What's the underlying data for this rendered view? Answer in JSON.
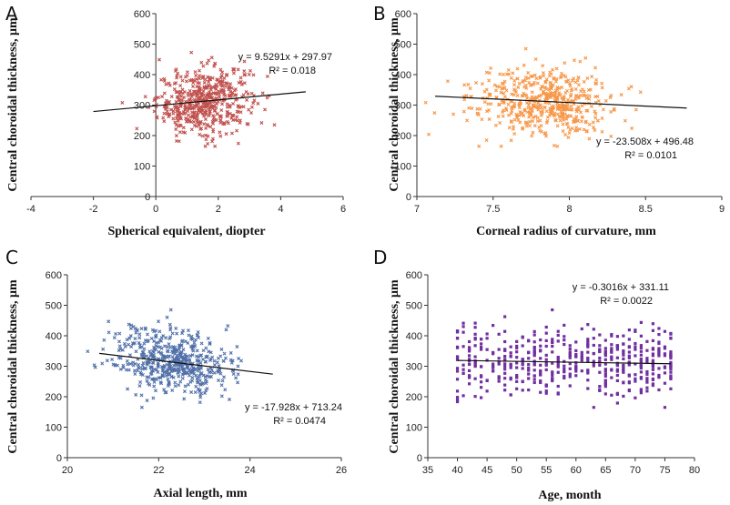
{
  "chart_data": [
    {
      "type": "scatter",
      "panel": "A",
      "xlabel": "Spherical equivalent, diopter",
      "ylabel": "Central  choroidal thickness, μm",
      "xlim": [
        -4,
        6
      ],
      "ylim": [
        0,
        600
      ],
      "xticks": [
        -4,
        -2,
        0,
        2,
        4,
        6
      ],
      "yticks": [
        0,
        100,
        200,
        300,
        400,
        500,
        600
      ],
      "y_axis_at_x": 0,
      "color": "#c0504d",
      "marker": "x",
      "n_points": 520,
      "x_distribution": {
        "mean": 1.55,
        "sd": 0.75
      },
      "y_distribution": {
        "mean": 310,
        "sd": 55
      },
      "trendline": {
        "slope": 9.5291,
        "intercept": 297.97,
        "x_range": [
          -2,
          4.8
        ]
      },
      "equation": "y = 9.5291x + 297.97",
      "r2": "R² = 0.018"
    },
    {
      "type": "scatter",
      "panel": "B",
      "xlabel": "Corneal radius of curvature, mm",
      "ylabel": "Central  choroidal thickness, μm",
      "xlim": [
        7,
        9
      ],
      "ylim": [
        0,
        600
      ],
      "xticks": [
        7,
        7.5,
        8,
        8.5,
        9
      ],
      "yticks": [
        0,
        100,
        200,
        300,
        400,
        500,
        600
      ],
      "y_axis_at_x": 7,
      "color": "#f79646",
      "marker": "x",
      "n_points": 520,
      "x_distribution": {
        "mean": 7.82,
        "sd": 0.23
      },
      "y_distribution": {
        "mean": 310,
        "sd": 55
      },
      "trendline": {
        "slope": -23.508,
        "intercept": 496.48,
        "x_range": [
          7.12,
          8.77
        ]
      },
      "equation": "y = -23.508x + 496.48",
      "r2": "R² = 0.0101"
    },
    {
      "type": "scatter",
      "panel": "C",
      "xlabel": "Axial length, mm",
      "ylabel": "Central  choroidal thickness, μm",
      "xlim": [
        20,
        26
      ],
      "ylim": [
        0,
        600
      ],
      "xticks": [
        20,
        22,
        24,
        26
      ],
      "yticks": [
        0,
        100,
        200,
        300,
        400,
        500,
        600
      ],
      "y_axis_at_x": 20,
      "color": "#4f6fa8",
      "marker": "x",
      "n_points": 520,
      "x_distribution": {
        "mean": 22.3,
        "sd": 0.65
      },
      "y_distribution": {
        "mean": 310,
        "sd": 55
      },
      "trendline": {
        "slope": -17.928,
        "intercept": 713.24,
        "x_range": [
          20.7,
          24.5
        ]
      },
      "equation": "y = -17.928x + 713.24",
      "r2": "R² = 0.0474"
    },
    {
      "type": "scatter",
      "panel": "D",
      "xlabel": "Age, month",
      "ylabel": "Central choroidal thickness, μm",
      "xlim": [
        35,
        80
      ],
      "ylim": [
        0,
        600
      ],
      "xticks": [
        35,
        40,
        45,
        50,
        55,
        60,
        65,
        70,
        75,
        80
      ],
      "yticks": [
        0,
        100,
        200,
        300,
        400,
        500,
        600
      ],
      "y_axis_at_x": 35,
      "color": "#7030a0",
      "marker": "square",
      "n_points": 520,
      "x_distribution": {
        "min": 40,
        "max": 76,
        "integer": true
      },
      "y_distribution": {
        "mean": 310,
        "sd": 55
      },
      "trendline": {
        "slope": -0.3016,
        "intercept": 331.11,
        "x_range": [
          40,
          76
        ]
      },
      "equation": "y = -0.3016x + 331.11",
      "r2": "R² = 0.0022"
    }
  ]
}
